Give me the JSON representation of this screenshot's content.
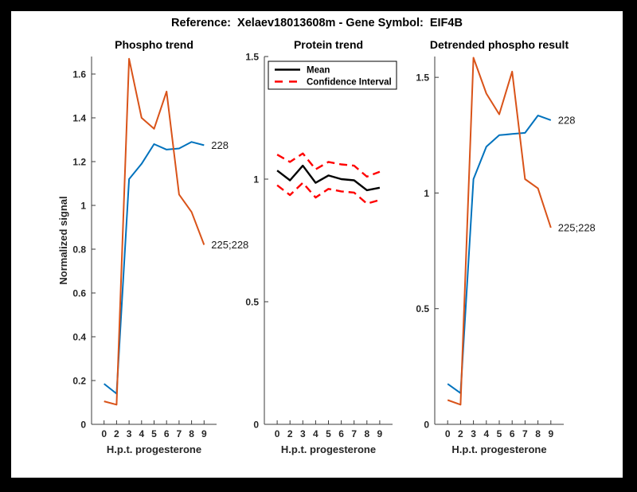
{
  "figure": {
    "title": "Reference:  Xelaev18013608m - Gene Symbol:  EIF4B",
    "background": "#ffffff",
    "frame_color": "#000000",
    "axis_color": "#3b3b3b",
    "tick_color": "#262626"
  },
  "chart_data": [
    {
      "type": "line",
      "title": "Phospho trend",
      "xlabel": "H.p.t. progesterone",
      "ylabel": "Normalized signal",
      "x": [
        "0",
        "2",
        "3",
        "4",
        "5",
        "6",
        "7",
        "8",
        "9"
      ],
      "ylim": [
        0,
        1.68
      ],
      "yticks": [
        0,
        0.2,
        0.4,
        0.6,
        0.8,
        1,
        1.2,
        1.4,
        1.6
      ],
      "ytick_labels": [
        "0",
        "0.2",
        "0.4",
        "0.6",
        "0.8",
        "1",
        "1.2",
        "1.4",
        "1.6"
      ],
      "grid": false,
      "series": [
        {
          "name": "228",
          "label": "228",
          "color": "#0072BD",
          "style": "solid",
          "values": [
            0.185,
            0.14,
            1.12,
            1.19,
            1.28,
            1.255,
            1.26,
            1.29,
            1.275
          ]
        },
        {
          "name": "225;228",
          "label": "225;228",
          "color": "#D95319",
          "style": "solid",
          "values": [
            0.105,
            0.09,
            1.67,
            1.4,
            1.35,
            1.52,
            1.05,
            0.97,
            0.82
          ]
        }
      ]
    },
    {
      "type": "line",
      "title": "Protein trend",
      "xlabel": "H.p.t. progesterone",
      "ylabel": "",
      "x": [
        "0",
        "2",
        "3",
        "4",
        "5",
        "6",
        "7",
        "8",
        "9"
      ],
      "ylim": [
        0,
        1.5
      ],
      "yticks": [
        0,
        0.5,
        1,
        1.5
      ],
      "ytick_labels": [
        "0",
        "0.5",
        "1",
        "1.5"
      ],
      "grid": false,
      "legend": {
        "position": "northwest-inside",
        "entries": [
          {
            "label": "Mean",
            "color": "#000000",
            "style": "solid"
          },
          {
            "label": "Confidence Interval",
            "color": "#FF0000",
            "style": "dashed"
          }
        ]
      },
      "series": [
        {
          "name": "Mean",
          "color": "#000000",
          "style": "solid",
          "values": [
            1.035,
            0.995,
            1.055,
            0.985,
            1.015,
            1.0,
            0.995,
            0.955,
            0.965
          ]
        },
        {
          "name": "CI upper",
          "color": "#FF0000",
          "style": "dashed",
          "values": [
            1.1,
            1.07,
            1.105,
            1.04,
            1.07,
            1.06,
            1.055,
            1.01,
            1.03
          ]
        },
        {
          "name": "CI lower",
          "color": "#FF0000",
          "style": "dashed",
          "values": [
            0.975,
            0.935,
            0.985,
            0.925,
            0.96,
            0.95,
            0.945,
            0.9,
            0.915
          ]
        }
      ]
    },
    {
      "type": "line",
      "title": "Detrended phospho result",
      "xlabel": "H.p.t. progesterone",
      "ylabel": "",
      "x": [
        "0",
        "2",
        "3",
        "4",
        "5",
        "6",
        "7",
        "8",
        "9"
      ],
      "ylim": [
        0,
        1.59
      ],
      "yticks": [
        0,
        0.5,
        1,
        1.5
      ],
      "ytick_labels": [
        "0",
        "0.5",
        "1",
        "1.5"
      ],
      "grid": false,
      "series": [
        {
          "name": "228",
          "label": "228",
          "color": "#0072BD",
          "style": "solid",
          "values": [
            0.175,
            0.135,
            1.06,
            1.2,
            1.25,
            1.255,
            1.26,
            1.335,
            1.315
          ]
        },
        {
          "name": "225;228",
          "label": "225;228",
          "color": "#D95319",
          "style": "solid",
          "values": [
            0.105,
            0.085,
            1.585,
            1.43,
            1.34,
            1.525,
            1.06,
            1.02,
            0.85
          ]
        }
      ]
    }
  ]
}
